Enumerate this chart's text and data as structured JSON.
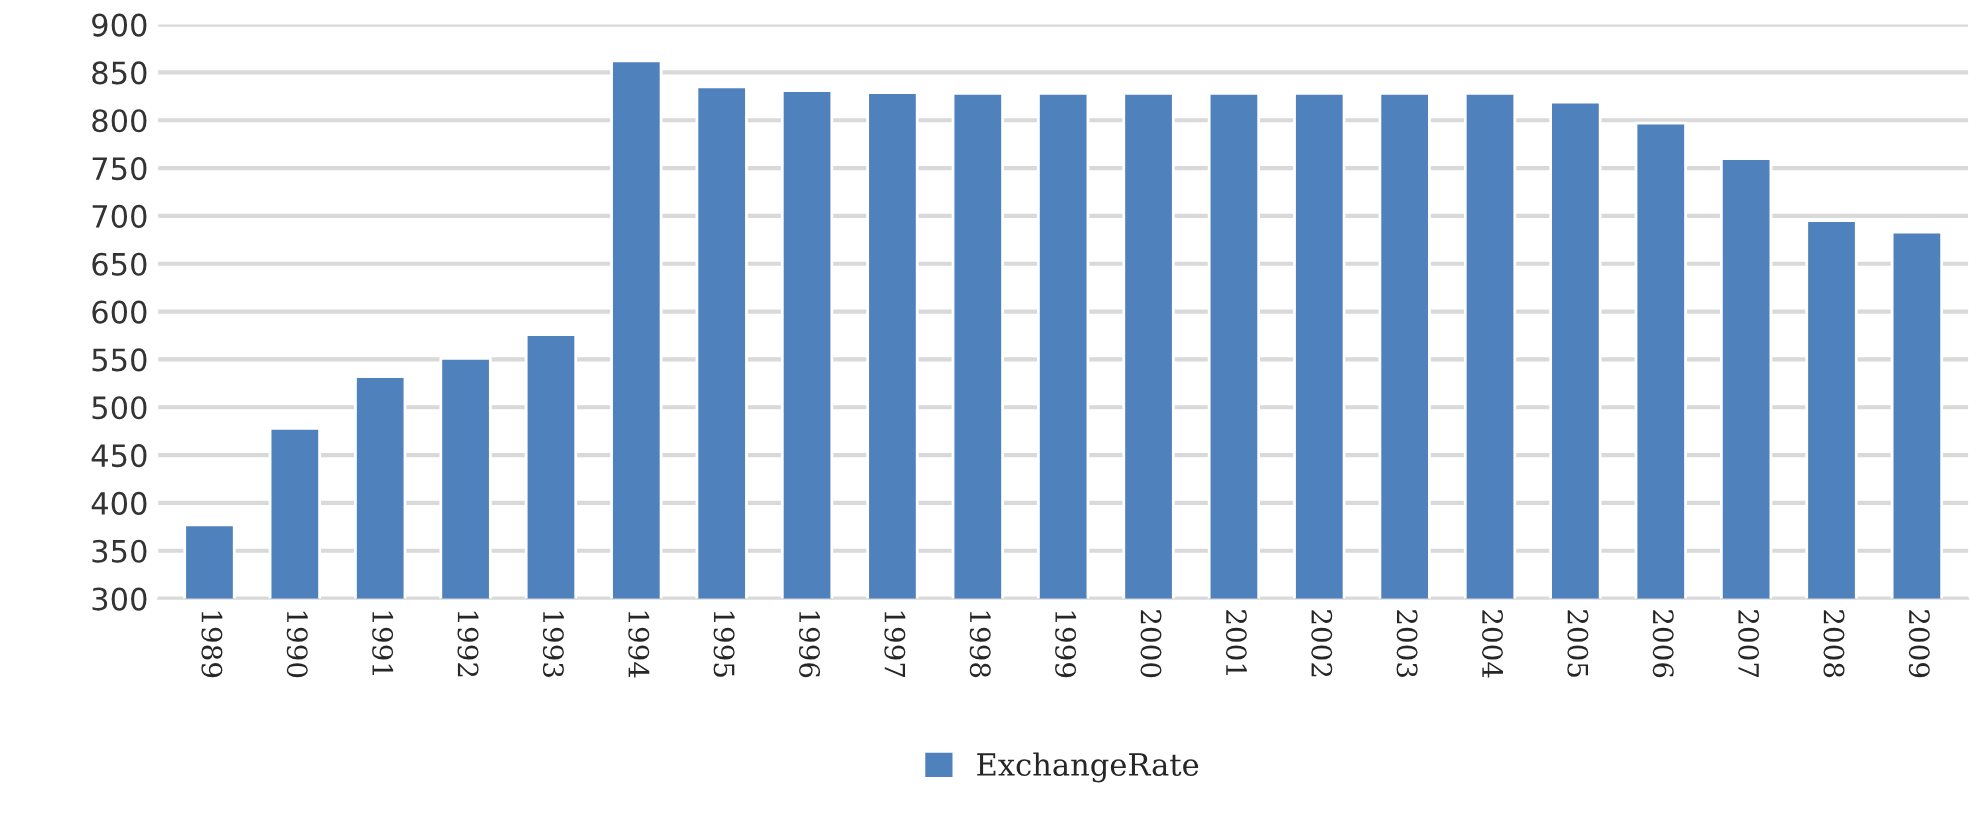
{
  "chart_data": {
    "type": "bar",
    "categories": [
      "1989",
      "1990",
      "1991",
      "1992",
      "1993",
      "1994",
      "1995",
      "1996",
      "1997",
      "1998",
      "1999",
      "2000",
      "2001",
      "2002",
      "2003",
      "2004",
      "2005",
      "2006",
      "2007",
      "2008",
      "2009"
    ],
    "series": [
      {
        "name": "ExchangeRate",
        "color": "#4f81bd",
        "values": [
          377,
          478,
          532,
          551,
          576,
          862,
          835,
          831,
          829,
          828,
          828,
          828,
          828,
          828,
          828,
          828,
          819,
          797,
          760,
          695,
          683
        ]
      }
    ],
    "ylim": [
      300,
      900
    ],
    "yticks": [
      300,
      350,
      400,
      450,
      500,
      550,
      600,
      650,
      700,
      750,
      800,
      850,
      900
    ],
    "grid": "y",
    "legend": "bottom"
  }
}
